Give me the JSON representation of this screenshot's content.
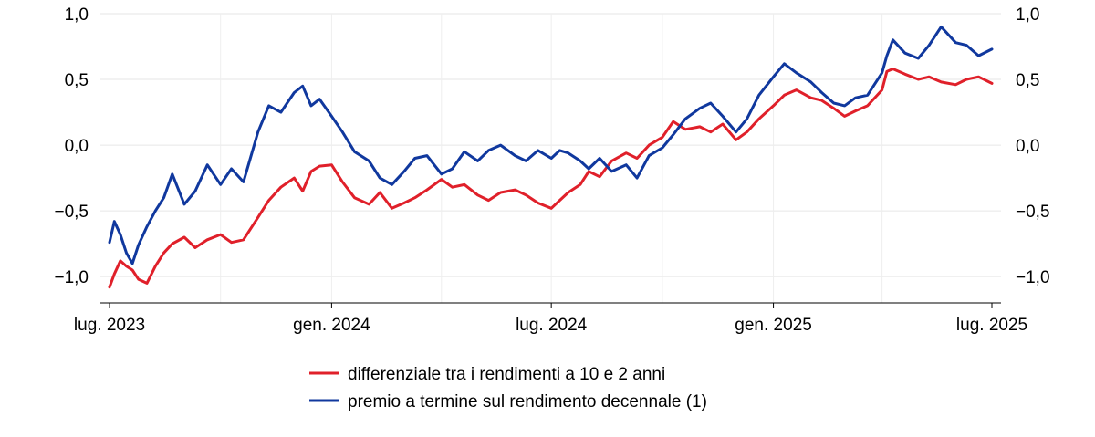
{
  "chart_data": {
    "type": "line",
    "x_unit": "date",
    "x_range": [
      "2023-07-01",
      "2025-07-01"
    ],
    "ylim": [
      -1.2,
      1.0
    ],
    "y_ticks": [
      1.0,
      0.5,
      0.0,
      -0.5,
      -1.0
    ],
    "y_tick_labels": [
      "1,0",
      "0,5",
      "0,0",
      "−0,5",
      "−1,0"
    ],
    "y_axes": "left-and-right",
    "x_ticks": [
      "2023-07-01",
      "2024-01-01",
      "2024-07-01",
      "2025-01-01",
      "2025-07-01"
    ],
    "x_tick_labels": [
      "lug. 2023",
      "gen. 2024",
      "lug. 2024",
      "gen. 2025",
      "lug. 2025"
    ],
    "grid": true,
    "legend_position": "bottom-center",
    "series": [
      {
        "name": "differenziale tra i rendimenti a 10 e 2 anni",
        "color": "#e0202a",
        "points": [
          [
            "2023-07-01",
            -1.08
          ],
          [
            "2023-07-05",
            -0.98
          ],
          [
            "2023-07-10",
            -0.88
          ],
          [
            "2023-07-15",
            -0.92
          ],
          [
            "2023-07-20",
            -0.95
          ],
          [
            "2023-07-25",
            -1.02
          ],
          [
            "2023-08-01",
            -1.05
          ],
          [
            "2023-08-08",
            -0.92
          ],
          [
            "2023-08-15",
            -0.82
          ],
          [
            "2023-08-22",
            -0.75
          ],
          [
            "2023-09-01",
            -0.7
          ],
          [
            "2023-09-10",
            -0.78
          ],
          [
            "2023-09-20",
            -0.72
          ],
          [
            "2023-10-01",
            -0.68
          ],
          [
            "2023-10-10",
            -0.74
          ],
          [
            "2023-10-20",
            -0.72
          ],
          [
            "2023-11-01",
            -0.55
          ],
          [
            "2023-11-10",
            -0.42
          ],
          [
            "2023-11-20",
            -0.32
          ],
          [
            "2023-12-01",
            -0.25
          ],
          [
            "2023-12-08",
            -0.35
          ],
          [
            "2023-12-15",
            -0.2
          ],
          [
            "2023-12-22",
            -0.16
          ],
          [
            "2024-01-01",
            -0.15
          ],
          [
            "2024-01-10",
            -0.28
          ],
          [
            "2024-01-20",
            -0.4
          ],
          [
            "2024-02-01",
            -0.45
          ],
          [
            "2024-02-10",
            -0.36
          ],
          [
            "2024-02-20",
            -0.48
          ],
          [
            "2024-03-01",
            -0.44
          ],
          [
            "2024-03-10",
            -0.4
          ],
          [
            "2024-03-20",
            -0.34
          ],
          [
            "2024-04-01",
            -0.26
          ],
          [
            "2024-04-10",
            -0.32
          ],
          [
            "2024-04-20",
            -0.3
          ],
          [
            "2024-05-01",
            -0.38
          ],
          [
            "2024-05-10",
            -0.42
          ],
          [
            "2024-05-20",
            -0.36
          ],
          [
            "2024-06-01",
            -0.34
          ],
          [
            "2024-06-10",
            -0.38
          ],
          [
            "2024-06-20",
            -0.44
          ],
          [
            "2024-07-01",
            -0.48
          ],
          [
            "2024-07-08",
            -0.42
          ],
          [
            "2024-07-15",
            -0.36
          ],
          [
            "2024-07-25",
            -0.3
          ],
          [
            "2024-08-01",
            -0.2
          ],
          [
            "2024-08-10",
            -0.24
          ],
          [
            "2024-08-20",
            -0.12
          ],
          [
            "2024-09-01",
            -0.06
          ],
          [
            "2024-09-10",
            -0.1
          ],
          [
            "2024-09-20",
            0.0
          ],
          [
            "2024-10-01",
            0.06
          ],
          [
            "2024-10-10",
            0.18
          ],
          [
            "2024-10-20",
            0.12
          ],
          [
            "2024-11-01",
            0.14
          ],
          [
            "2024-11-10",
            0.1
          ],
          [
            "2024-11-20",
            0.16
          ],
          [
            "2024-12-01",
            0.04
          ],
          [
            "2024-12-10",
            0.1
          ],
          [
            "2024-12-20",
            0.2
          ],
          [
            "2025-01-01",
            0.3
          ],
          [
            "2025-01-10",
            0.38
          ],
          [
            "2025-01-20",
            0.42
          ],
          [
            "2025-02-01",
            0.36
          ],
          [
            "2025-02-10",
            0.34
          ],
          [
            "2025-02-20",
            0.28
          ],
          [
            "2025-03-01",
            0.22
          ],
          [
            "2025-03-10",
            0.26
          ],
          [
            "2025-03-20",
            0.3
          ],
          [
            "2025-04-01",
            0.42
          ],
          [
            "2025-04-05",
            0.56
          ],
          [
            "2025-04-10",
            0.58
          ],
          [
            "2025-04-20",
            0.54
          ],
          [
            "2025-05-01",
            0.5
          ],
          [
            "2025-05-10",
            0.52
          ],
          [
            "2025-05-20",
            0.48
          ],
          [
            "2025-06-01",
            0.46
          ],
          [
            "2025-06-10",
            0.5
          ],
          [
            "2025-06-20",
            0.52
          ],
          [
            "2025-07-01",
            0.47
          ]
        ]
      },
      {
        "name": "premio a termine sul rendimento decennale (1)",
        "color": "#10389e",
        "points": [
          [
            "2023-07-01",
            -0.74
          ],
          [
            "2023-07-05",
            -0.58
          ],
          [
            "2023-07-10",
            -0.68
          ],
          [
            "2023-07-15",
            -0.82
          ],
          [
            "2023-07-20",
            -0.9
          ],
          [
            "2023-07-25",
            -0.76
          ],
          [
            "2023-08-01",
            -0.62
          ],
          [
            "2023-08-08",
            -0.5
          ],
          [
            "2023-08-15",
            -0.4
          ],
          [
            "2023-08-22",
            -0.22
          ],
          [
            "2023-09-01",
            -0.45
          ],
          [
            "2023-09-10",
            -0.35
          ],
          [
            "2023-09-20",
            -0.15
          ],
          [
            "2023-10-01",
            -0.3
          ],
          [
            "2023-10-10",
            -0.18
          ],
          [
            "2023-10-20",
            -0.28
          ],
          [
            "2023-11-01",
            0.1
          ],
          [
            "2023-11-10",
            0.3
          ],
          [
            "2023-11-20",
            0.25
          ],
          [
            "2023-12-01",
            0.4
          ],
          [
            "2023-12-08",
            0.45
          ],
          [
            "2023-12-15",
            0.3
          ],
          [
            "2023-12-22",
            0.35
          ],
          [
            "2024-01-01",
            0.22
          ],
          [
            "2024-01-10",
            0.1
          ],
          [
            "2024-01-20",
            -0.05
          ],
          [
            "2024-02-01",
            -0.12
          ],
          [
            "2024-02-10",
            -0.25
          ],
          [
            "2024-02-20",
            -0.3
          ],
          [
            "2024-03-01",
            -0.2
          ],
          [
            "2024-03-10",
            -0.1
          ],
          [
            "2024-03-20",
            -0.08
          ],
          [
            "2024-04-01",
            -0.22
          ],
          [
            "2024-04-10",
            -0.18
          ],
          [
            "2024-04-20",
            -0.05
          ],
          [
            "2024-05-01",
            -0.12
          ],
          [
            "2024-05-10",
            -0.04
          ],
          [
            "2024-05-20",
            0.0
          ],
          [
            "2024-06-01",
            -0.08
          ],
          [
            "2024-06-10",
            -0.12
          ],
          [
            "2024-06-20",
            -0.04
          ],
          [
            "2024-07-01",
            -0.1
          ],
          [
            "2024-07-08",
            -0.04
          ],
          [
            "2024-07-15",
            -0.06
          ],
          [
            "2024-07-25",
            -0.12
          ],
          [
            "2024-08-01",
            -0.18
          ],
          [
            "2024-08-10",
            -0.1
          ],
          [
            "2024-08-20",
            -0.2
          ],
          [
            "2024-09-01",
            -0.15
          ],
          [
            "2024-09-10",
            -0.25
          ],
          [
            "2024-09-20",
            -0.08
          ],
          [
            "2024-10-01",
            -0.02
          ],
          [
            "2024-10-10",
            0.08
          ],
          [
            "2024-10-20",
            0.2
          ],
          [
            "2024-11-01",
            0.28
          ],
          [
            "2024-11-10",
            0.32
          ],
          [
            "2024-11-20",
            0.22
          ],
          [
            "2024-12-01",
            0.1
          ],
          [
            "2024-12-10",
            0.2
          ],
          [
            "2024-12-20",
            0.38
          ],
          [
            "2025-01-01",
            0.52
          ],
          [
            "2025-01-10",
            0.62
          ],
          [
            "2025-01-20",
            0.55
          ],
          [
            "2025-02-01",
            0.48
          ],
          [
            "2025-02-10",
            0.4
          ],
          [
            "2025-02-20",
            0.32
          ],
          [
            "2025-03-01",
            0.3
          ],
          [
            "2025-03-10",
            0.36
          ],
          [
            "2025-03-20",
            0.38
          ],
          [
            "2025-04-01",
            0.55
          ],
          [
            "2025-04-05",
            0.68
          ],
          [
            "2025-04-10",
            0.8
          ],
          [
            "2025-04-20",
            0.7
          ],
          [
            "2025-05-01",
            0.66
          ],
          [
            "2025-05-10",
            0.76
          ],
          [
            "2025-05-20",
            0.9
          ],
          [
            "2025-06-01",
            0.78
          ],
          [
            "2025-06-10",
            0.76
          ],
          [
            "2025-06-20",
            0.68
          ],
          [
            "2025-07-01",
            0.73
          ]
        ]
      }
    ]
  }
}
